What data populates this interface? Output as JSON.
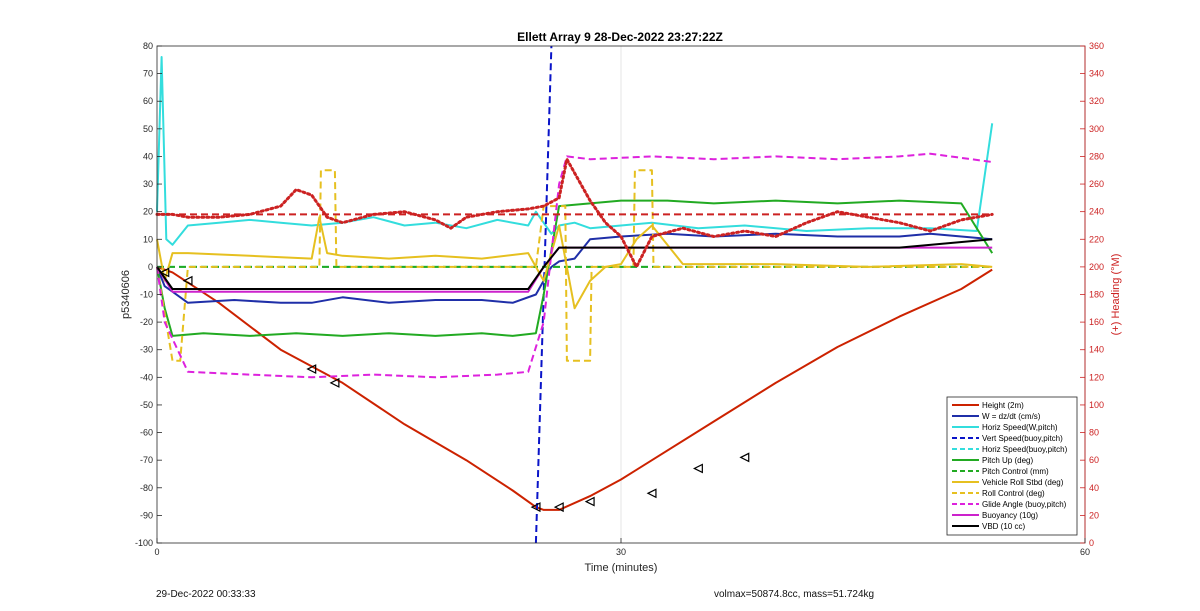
{
  "chart_data": {
    "type": "line",
    "title": "Ellett Array 9 28-Dec-2022 23:27:22Z",
    "xlabel": "Time (minutes)",
    "ylabel": "p5340606",
    "y2label": "(+) Heading (°M)",
    "xlim": [
      0,
      60
    ],
    "ylim": [
      -100,
      80
    ],
    "y2lim": [
      0,
      360
    ],
    "xticks": [
      0,
      30,
      60
    ],
    "yticks": [
      80,
      70,
      60,
      50,
      40,
      30,
      20,
      10,
      0,
      -10,
      -20,
      -30,
      -40,
      -50,
      -60,
      -70,
      -80,
      -90,
      -100
    ],
    "y2ticks": [
      360,
      340,
      320,
      300,
      280,
      260,
      240,
      220,
      200,
      180,
      160,
      140,
      120,
      100,
      80,
      60,
      40,
      20,
      0
    ],
    "grid": "x-only",
    "legend_position": "bottom-right",
    "series": [
      {
        "name": "Height (2m)",
        "color": "#cc2200",
        "style": "solid",
        "x": [
          0,
          1,
          4,
          8,
          12,
          16,
          20,
          23,
          24.5,
          25,
          26,
          28,
          30,
          32,
          36,
          40,
          44,
          48,
          52,
          54
        ],
        "y": [
          0,
          -2,
          -13,
          -30,
          -42,
          -57,
          -70,
          -81,
          -87,
          -88,
          -88,
          -83,
          -77,
          -70,
          -56,
          -42,
          -29,
          -18,
          -8,
          -1
        ]
      },
      {
        "name": "W = dz/dt (cm/s)",
        "color": "#1f2fa8",
        "style": "solid",
        "x": [
          0,
          0.5,
          1,
          2,
          5,
          8,
          10,
          12,
          15,
          18,
          21,
          23,
          24.5,
          25.5,
          26,
          27,
          28,
          30,
          33,
          36,
          40,
          44,
          48,
          50,
          52,
          54
        ],
        "y": [
          0,
          -7,
          -9,
          -13,
          -12,
          -13,
          -13,
          -11,
          -13,
          -12,
          -12,
          -13,
          -10,
          0,
          2,
          3,
          10,
          11,
          12,
          11,
          12,
          11,
          11,
          12,
          11,
          10
        ]
      },
      {
        "name": "Horiz Speed(W,pitch)",
        "color": "#33dddd",
        "style": "solid",
        "x": [
          0,
          0.3,
          0.6,
          1,
          2,
          4,
          6,
          8,
          10,
          12,
          14,
          16,
          18,
          20,
          22,
          24,
          24.5,
          25.5,
          26,
          27,
          28,
          30,
          32,
          35,
          38,
          42,
          46,
          50,
          53,
          54
        ],
        "y": [
          20,
          76,
          10,
          8,
          15,
          16,
          17,
          16,
          15,
          16,
          18,
          15,
          16,
          14,
          17,
          15,
          20,
          12,
          15,
          16,
          14,
          15,
          16,
          14,
          15,
          13,
          14,
          14,
          13,
          52
        ]
      },
      {
        "name": "Vert Speed(buoy,pitch)",
        "color": "#0a14c8",
        "style": "dashed",
        "x": [
          24.5,
          25.5
        ],
        "y": [
          -100,
          80
        ]
      },
      {
        "name": "Horiz Speed(buoy,pitch)",
        "color": "#33dddd",
        "style": "dashed",
        "x": [
          0,
          54
        ],
        "y": [
          0,
          0
        ]
      },
      {
        "name": "Pitch Up (deg)",
        "color": "#22aa22",
        "style": "solid",
        "x": [
          0,
          0.5,
          1,
          3,
          6,
          9,
          12,
          15,
          18,
          21,
          23,
          24.5,
          25,
          26,
          28,
          30,
          33,
          36,
          40,
          44,
          48,
          52,
          54
        ],
        "y": [
          0,
          -15,
          -25,
          -24,
          -25,
          -24,
          -25,
          -24,
          -25,
          -24,
          -25,
          -24,
          -10,
          22,
          23,
          24,
          24,
          23,
          24,
          23,
          24,
          23,
          5
        ]
      },
      {
        "name": "Pitch Control (mm)",
        "color": "#22aa22",
        "style": "dashed",
        "x": [
          0,
          54
        ],
        "y": [
          0,
          0
        ]
      },
      {
        "name": "Vehicle Roll Stbd (deg)",
        "color": "#e6c020",
        "style": "solid",
        "x": [
          0,
          0.5,
          1,
          2,
          6,
          10,
          10.5,
          11,
          12,
          15,
          18,
          21,
          24,
          24.5,
          25,
          26,
          27,
          28,
          29,
          30,
          31,
          32,
          34,
          40,
          46,
          52,
          54
        ],
        "y": [
          10,
          -5,
          5,
          5,
          4,
          3,
          18,
          5,
          4,
          3,
          4,
          3,
          5,
          0,
          -5,
          15,
          -15,
          -5,
          0,
          1,
          10,
          15,
          1,
          1,
          0,
          1,
          0
        ]
      },
      {
        "name": "Roll Control (deg)",
        "color": "#e6c020",
        "style": "dashed",
        "x": [
          0,
          1,
          1.5,
          2,
          10.5,
          10.6,
          11.5,
          11.6,
          24.5,
          25,
          26.4,
          26.5,
          28,
          28.1,
          30.8,
          30.9,
          32,
          32.1,
          54
        ],
        "y": [
          0,
          -34,
          -34,
          0,
          0,
          35,
          35,
          0,
          0,
          22,
          22,
          -34,
          -34,
          0,
          0,
          35,
          35,
          0,
          0
        ]
      },
      {
        "name": "Glide Angle (buoy,pitch)",
        "color": "#dd22dd",
        "style": "dashed",
        "x": [
          0,
          0.5,
          2,
          6,
          10,
          14,
          18,
          22,
          24,
          25,
          26,
          26.5,
          28,
          32,
          36,
          40,
          44,
          48,
          50,
          54
        ],
        "y": [
          0,
          -20,
          -38,
          -39,
          -40,
          -39,
          -40,
          -39,
          -38,
          -20,
          30,
          40,
          39,
          40,
          39,
          40,
          39,
          40,
          41,
          38
        ]
      },
      {
        "name": "Buoyancy (10g)",
        "color": "#cc22cc",
        "style": "solid",
        "x": [
          0,
          1,
          24,
          25,
          26,
          54
        ],
        "y": [
          0,
          -9,
          -9,
          0,
          7,
          7
        ]
      },
      {
        "name": "VBD (10 cc)",
        "color": "#000000",
        "style": "solid",
        "x": [
          0,
          1,
          24,
          25,
          26,
          48,
          54
        ],
        "y": [
          0,
          -8,
          -8,
          0,
          7,
          7,
          10
        ]
      },
      {
        "name": "",
        "color": "#cc2222",
        "style": "dotted",
        "axis": "right",
        "x": [
          0,
          1,
          2,
          4,
          6,
          8,
          9,
          10,
          11,
          12,
          14,
          16,
          18,
          19,
          20,
          22,
          24,
          25,
          26,
          26.5,
          27,
          28,
          29,
          30,
          31,
          32,
          34,
          36,
          38,
          40,
          42,
          44,
          46,
          48,
          50,
          52,
          54
        ],
        "y": [
          238,
          238,
          236,
          236,
          238,
          244,
          256,
          252,
          236,
          232,
          238,
          240,
          234,
          228,
          236,
          240,
          242,
          244,
          250,
          278,
          268,
          248,
          232,
          222,
          200,
          222,
          228,
          222,
          226,
          222,
          232,
          240,
          236,
          232,
          226,
          234,
          238
        ]
      },
      {
        "name": "",
        "color": "#cc2222",
        "style": "dashed",
        "axis": "right",
        "x": [
          0,
          54
        ],
        "y": [
          238,
          238
        ]
      }
    ],
    "markers": {
      "x": [
        0.5,
        2,
        10,
        11.5,
        24.5,
        26,
        28,
        32,
        35,
        38
      ],
      "y": [
        -2,
        -5,
        -37,
        -42,
        -87,
        -87,
        -85,
        -82,
        -73,
        -69
      ]
    }
  },
  "footer": {
    "left": "29-Dec-2022 00:33:33",
    "right": "volmax=50874.8cc, mass=51.724kg"
  }
}
